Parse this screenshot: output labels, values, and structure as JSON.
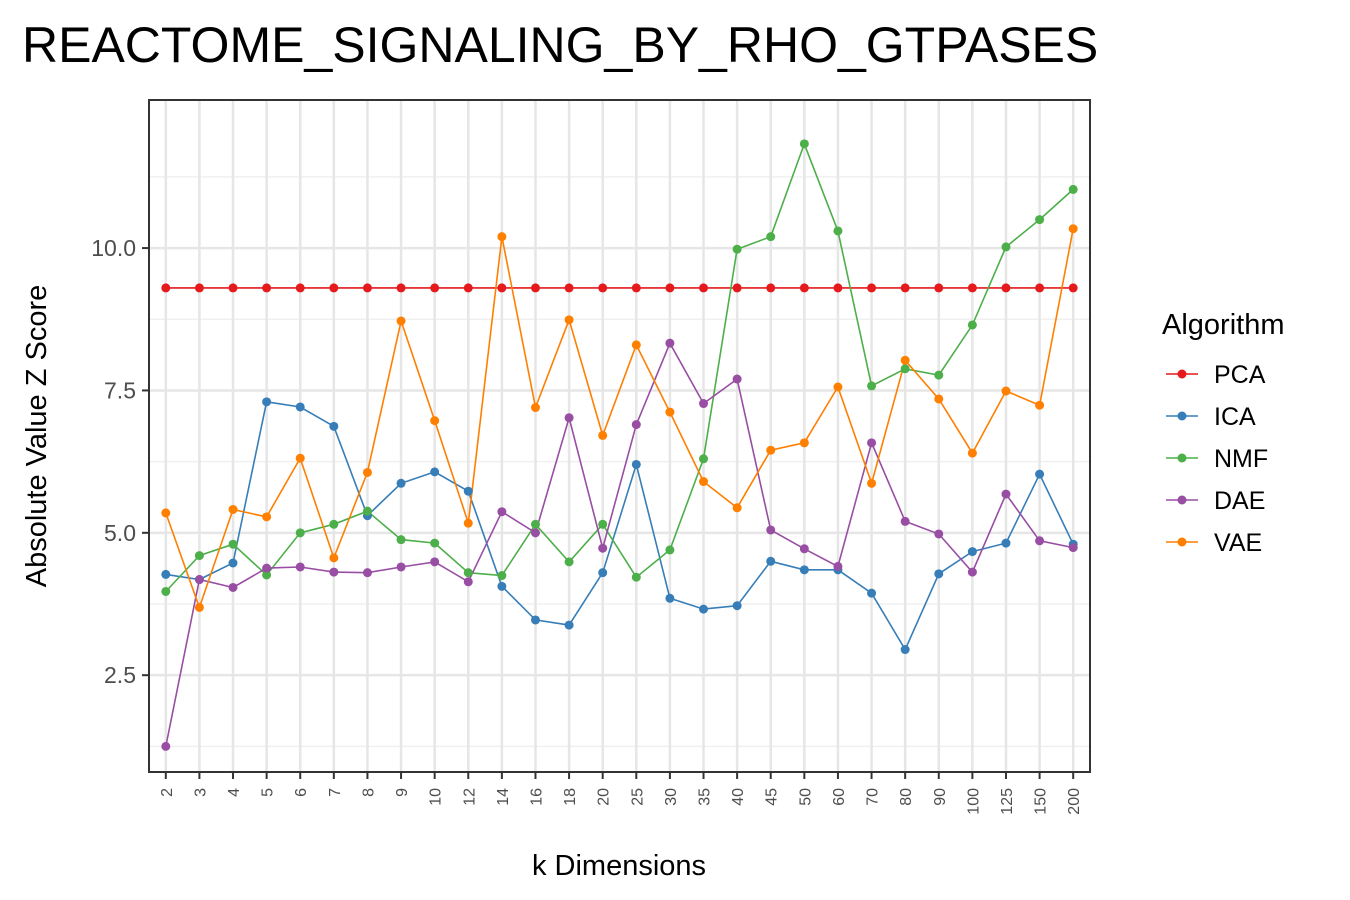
{
  "chart_data": {
    "type": "line",
    "title": "REACTOME_SIGNALING_BY_RHO_GTPASES",
    "xlabel": "k Dimensions",
    "ylabel": "Absolute Value Z Score",
    "categories": [
      "2",
      "3",
      "4",
      "5",
      "6",
      "7",
      "8",
      "9",
      "10",
      "12",
      "14",
      "16",
      "18",
      "20",
      "25",
      "30",
      "35",
      "40",
      "45",
      "50",
      "60",
      "70",
      "80",
      "90",
      "100",
      "125",
      "150",
      "200"
    ],
    "yticks": [
      "2.5",
      "5.0",
      "7.5",
      "10.0"
    ],
    "ylim": [
      0.8,
      12.6
    ],
    "grid": true,
    "legend": {
      "title": "Algorithm",
      "position": "right"
    },
    "series": [
      {
        "name": "PCA",
        "color": "#e41a1c",
        "values": [
          9.3,
          9.3,
          9.3,
          9.3,
          9.3,
          9.3,
          9.3,
          9.3,
          9.3,
          9.3,
          9.3,
          9.3,
          9.3,
          9.3,
          9.3,
          9.3,
          9.3,
          9.3,
          9.3,
          9.3,
          9.3,
          9.3,
          9.3,
          9.3,
          9.3,
          9.3,
          9.3,
          9.3
        ]
      },
      {
        "name": "ICA",
        "color": "#377eb8",
        "values": [
          4.27,
          4.18,
          4.47,
          7.3,
          7.21,
          6.87,
          5.3,
          5.87,
          6.07,
          5.73,
          4.06,
          3.47,
          3.38,
          4.3,
          6.2,
          3.85,
          3.66,
          3.72,
          4.5,
          4.35,
          4.35,
          3.94,
          2.95,
          4.28,
          4.67,
          4.82,
          6.03,
          4.8
        ]
      },
      {
        "name": "NMF",
        "color": "#4daf4a",
        "values": [
          3.97,
          4.6,
          4.8,
          4.26,
          5.0,
          5.15,
          5.38,
          4.88,
          4.82,
          4.3,
          4.25,
          5.15,
          4.49,
          5.15,
          4.22,
          4.7,
          6.3,
          9.98,
          10.2,
          11.83,
          10.3,
          7.58,
          7.88,
          7.77,
          8.65,
          10.02,
          10.5,
          11.03
        ]
      },
      {
        "name": "DAE",
        "color": "#984ea3",
        "values": [
          1.25,
          4.18,
          4.04,
          4.38,
          4.4,
          4.31,
          4.3,
          4.4,
          4.49,
          4.14,
          5.37,
          5.0,
          7.02,
          4.73,
          6.9,
          8.33,
          7.27,
          7.7,
          5.05,
          4.72,
          4.41,
          6.58,
          5.2,
          4.98,
          4.31,
          5.68,
          4.86,
          4.74
        ]
      },
      {
        "name": "VAE",
        "color": "#ff7f00",
        "values": [
          5.35,
          3.69,
          5.41,
          5.28,
          6.31,
          4.56,
          6.06,
          8.72,
          6.97,
          5.17,
          10.2,
          7.2,
          8.74,
          6.71,
          8.3,
          7.12,
          5.9,
          5.44,
          6.45,
          6.58,
          7.56,
          5.87,
          8.03,
          7.35,
          6.4,
          7.49,
          7.24,
          10.34
        ]
      }
    ]
  }
}
